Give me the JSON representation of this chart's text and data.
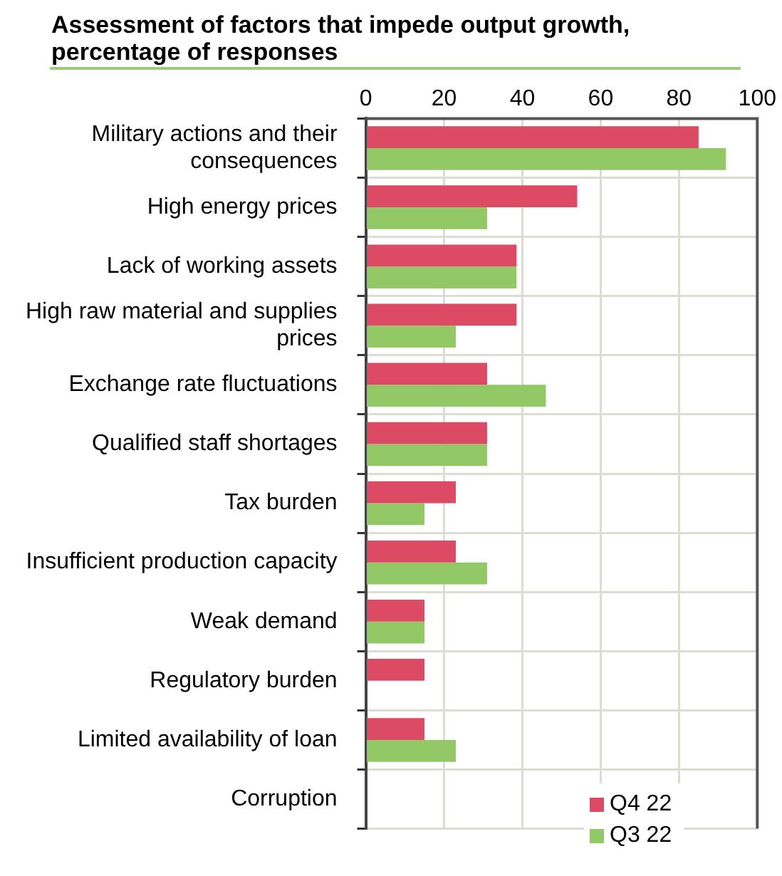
{
  "chart_data": {
    "type": "bar",
    "orientation": "horizontal",
    "title": "Assessment of factors that impede output growth, percentage of responses",
    "categories": [
      "Military actions and their consequences",
      "High energy prices",
      "Lack of working assets",
      "High raw material and supplies prices",
      "Exchange rate fluctuations",
      "Qualified staff shortages",
      "Tax burden",
      "Insufficient production capacity",
      "Weak demand",
      "Regulatory burden",
      "Limited availability of loan",
      "Corruption"
    ],
    "series": [
      {
        "name": "Q4 22",
        "color": "#dc4a64",
        "values": [
          85,
          54,
          38.5,
          38.5,
          31,
          31,
          23,
          23,
          15,
          15,
          15,
          0
        ]
      },
      {
        "name": "Q3 22",
        "color": "#92c966",
        "values": [
          92,
          31,
          38.5,
          23,
          46,
          31,
          15,
          31,
          15,
          0,
          23,
          0
        ]
      }
    ],
    "xlim": [
      0,
      100
    ],
    "xticks": [
      0,
      20,
      40,
      60,
      80,
      100
    ],
    "grid": true,
    "legend": "bottom right"
  }
}
